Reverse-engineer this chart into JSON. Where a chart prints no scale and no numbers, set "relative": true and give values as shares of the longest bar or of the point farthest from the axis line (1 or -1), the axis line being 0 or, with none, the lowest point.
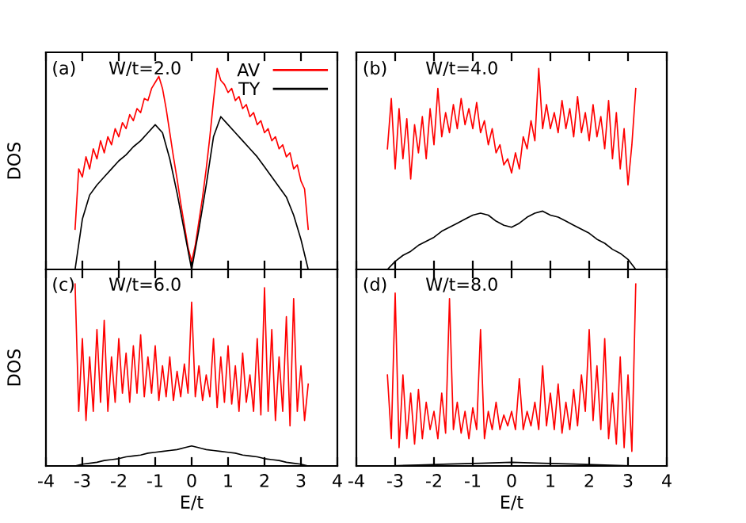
{
  "chart_data": [
    {
      "type": "line",
      "relative": true,
      "ylabel": "DOS",
      "annotations": [
        "(a)",
        "W/t=2.0"
      ],
      "xlim": [
        -4,
        4
      ],
      "xticks": [
        -4,
        -3,
        -2,
        -1,
        0,
        1,
        2,
        3,
        4
      ],
      "tick_labels": false,
      "legend": "top right",
      "x": [
        -3.2,
        -3.1,
        -3.0,
        -2.9,
        -2.8,
        -2.7,
        -2.6,
        -2.5,
        -2.4,
        -2.3,
        -2.2,
        -2.1,
        -2.0,
        -1.9,
        -1.8,
        -1.7,
        -1.6,
        -1.5,
        -1.4,
        -1.3,
        -1.2,
        -1.1,
        -1.0,
        -0.9,
        -0.8,
        -0.7,
        -0.6,
        -0.5,
        -0.4,
        -0.3,
        -0.2,
        -0.1,
        0.0,
        0.1,
        0.2,
        0.3,
        0.4,
        0.5,
        0.6,
        0.7,
        0.8,
        0.9,
        1.0,
        1.1,
        1.2,
        1.3,
        1.4,
        1.5,
        1.6,
        1.7,
        1.8,
        1.9,
        2.0,
        2.1,
        2.2,
        2.3,
        2.4,
        2.5,
        2.6,
        2.7,
        2.8,
        2.9,
        3.0,
        3.1,
        3.2
      ],
      "series": [
        {
          "name": "AV",
          "color": "#ff0000",
          "values": [
            0.2,
            0.5,
            0.46,
            0.56,
            0.5,
            0.6,
            0.55,
            0.64,
            0.58,
            0.66,
            0.62,
            0.7,
            0.66,
            0.73,
            0.7,
            0.77,
            0.74,
            0.8,
            0.78,
            0.85,
            0.84,
            0.9,
            0.93,
            0.96,
            0.9,
            0.8,
            0.68,
            0.56,
            0.45,
            0.33,
            0.22,
            0.11,
            0.04,
            0.12,
            0.24,
            0.36,
            0.5,
            0.66,
            0.84,
            1.0,
            0.94,
            0.92,
            0.88,
            0.9,
            0.84,
            0.86,
            0.8,
            0.82,
            0.76,
            0.78,
            0.72,
            0.74,
            0.68,
            0.7,
            0.64,
            0.66,
            0.6,
            0.62,
            0.56,
            0.58,
            0.5,
            0.52,
            0.44,
            0.4,
            0.2
          ]
        },
        {
          "name": "TY",
          "color": "#000000",
          "x": [
            -3.2,
            -3.0,
            -2.8,
            -2.6,
            -2.4,
            -2.2,
            -2.0,
            -1.8,
            -1.6,
            -1.4,
            -1.2,
            -1.0,
            -0.8,
            -0.6,
            -0.4,
            -0.2,
            0.0,
            0.2,
            0.4,
            0.6,
            0.8,
            1.0,
            1.2,
            1.4,
            1.6,
            1.8,
            2.0,
            2.2,
            2.4,
            2.6,
            2.8,
            3.0,
            3.2
          ],
          "values": [
            0,
            0.25,
            0.37,
            0.42,
            0.46,
            0.5,
            0.54,
            0.57,
            0.61,
            0.64,
            0.68,
            0.72,
            0.68,
            0.55,
            0.38,
            0.19,
            0,
            0.2,
            0.42,
            0.66,
            0.76,
            0.72,
            0.68,
            0.64,
            0.6,
            0.56,
            0.51,
            0.46,
            0.41,
            0.36,
            0.27,
            0.15,
            0
          ]
        }
      ]
    },
    {
      "type": "line",
      "relative": true,
      "annotations": [
        "(b)",
        "W/t=4.0"
      ],
      "xlim": [
        -4,
        4
      ],
      "xticks": [
        -4,
        -3,
        -2,
        -1,
        0,
        1,
        2,
        3,
        4
      ],
      "tick_labels": false,
      "x": [
        -3.2,
        -3.1,
        -3.0,
        -2.9,
        -2.8,
        -2.7,
        -2.6,
        -2.5,
        -2.4,
        -2.3,
        -2.2,
        -2.1,
        -2.0,
        -1.9,
        -1.8,
        -1.7,
        -1.6,
        -1.5,
        -1.4,
        -1.3,
        -1.2,
        -1.1,
        -1.0,
        -0.9,
        -0.8,
        -0.7,
        -0.6,
        -0.5,
        -0.4,
        -0.3,
        -0.2,
        -0.1,
        0.0,
        0.1,
        0.2,
        0.3,
        0.4,
        0.5,
        0.6,
        0.7,
        0.8,
        0.9,
        1.0,
        1.1,
        1.2,
        1.3,
        1.4,
        1.5,
        1.6,
        1.7,
        1.8,
        1.9,
        2.0,
        2.1,
        2.2,
        2.3,
        2.4,
        2.5,
        2.6,
        2.7,
        2.8,
        2.9,
        3.0,
        3.1,
        3.2
      ],
      "series": [
        {
          "color": "#ff0000",
          "values": [
            0.6,
            0.85,
            0.5,
            0.8,
            0.55,
            0.75,
            0.45,
            0.72,
            0.58,
            0.76,
            0.55,
            0.8,
            0.62,
            0.9,
            0.66,
            0.78,
            0.68,
            0.82,
            0.7,
            0.85,
            0.72,
            0.8,
            0.7,
            0.83,
            0.68,
            0.74,
            0.62,
            0.7,
            0.58,
            0.62,
            0.52,
            0.55,
            0.48,
            0.58,
            0.5,
            0.66,
            0.6,
            0.74,
            0.64,
            1.0,
            0.7,
            0.82,
            0.7,
            0.78,
            0.68,
            0.84,
            0.7,
            0.8,
            0.66,
            0.86,
            0.68,
            0.78,
            0.64,
            0.82,
            0.66,
            0.76,
            0.6,
            0.84,
            0.55,
            0.78,
            0.5,
            0.7,
            0.42,
            0.62,
            0.9
          ]
        },
        {
          "color": "#000000",
          "x": [
            -3.2,
            -3.0,
            -2.8,
            -2.6,
            -2.4,
            -2.2,
            -2.0,
            -1.8,
            -1.6,
            -1.4,
            -1.2,
            -1.0,
            -0.8,
            -0.6,
            -0.4,
            -0.2,
            0.0,
            0.2,
            0.4,
            0.6,
            0.8,
            1.0,
            1.2,
            1.4,
            1.6,
            1.8,
            2.0,
            2.2,
            2.4,
            2.6,
            2.8,
            3.0,
            3.2
          ],
          "values": [
            0,
            0.04,
            0.07,
            0.09,
            0.12,
            0.14,
            0.16,
            0.19,
            0.21,
            0.23,
            0.25,
            0.27,
            0.28,
            0.27,
            0.24,
            0.22,
            0.21,
            0.23,
            0.26,
            0.28,
            0.29,
            0.27,
            0.26,
            0.24,
            0.22,
            0.2,
            0.18,
            0.15,
            0.13,
            0.1,
            0.08,
            0.05,
            0
          ]
        }
      ]
    },
    {
      "type": "line",
      "relative": true,
      "ylabel": "DOS",
      "xlabel": "E/t",
      "annotations": [
        "(c)",
        "W/t=6.0"
      ],
      "xlim": [
        -4,
        4
      ],
      "xticks": [
        -4,
        -3,
        -2,
        -1,
        0,
        1,
        2,
        3,
        4
      ],
      "tick_labels": "x",
      "x": [
        -3.2,
        -3.1,
        -3.0,
        -2.9,
        -2.8,
        -2.7,
        -2.6,
        -2.5,
        -2.4,
        -2.3,
        -2.2,
        -2.1,
        -2.0,
        -1.9,
        -1.8,
        -1.7,
        -1.6,
        -1.5,
        -1.4,
        -1.3,
        -1.2,
        -1.1,
        -1.0,
        -0.9,
        -0.8,
        -0.7,
        -0.6,
        -0.5,
        -0.4,
        -0.3,
        -0.2,
        -0.1,
        0.0,
        0.1,
        0.2,
        0.3,
        0.4,
        0.5,
        0.6,
        0.7,
        0.8,
        0.9,
        1.0,
        1.1,
        1.2,
        1.3,
        1.4,
        1.5,
        1.6,
        1.7,
        1.8,
        1.9,
        2.0,
        2.1,
        2.2,
        2.3,
        2.4,
        2.5,
        2.6,
        2.7,
        2.8,
        2.9,
        3.0,
        3.1,
        3.2
      ],
      "series": [
        {
          "color": "#ff0000",
          "values": [
            1.0,
            0.3,
            0.7,
            0.25,
            0.6,
            0.3,
            0.75,
            0.35,
            0.8,
            0.3,
            0.6,
            0.35,
            0.7,
            0.4,
            0.62,
            0.35,
            0.66,
            0.4,
            0.72,
            0.38,
            0.6,
            0.4,
            0.66,
            0.36,
            0.55,
            0.38,
            0.6,
            0.36,
            0.52,
            0.38,
            0.56,
            0.4,
            0.9,
            0.38,
            0.55,
            0.36,
            0.5,
            0.38,
            0.7,
            0.32,
            0.6,
            0.35,
            0.66,
            0.34,
            0.55,
            0.3,
            0.62,
            0.35,
            0.5,
            0.3,
            0.7,
            0.28,
            0.98,
            0.3,
            0.75,
            0.25,
            0.6,
            0.3,
            0.82,
            0.22,
            0.92,
            0.3,
            0.55,
            0.25,
            0.45
          ]
        },
        {
          "color": "#000000",
          "x": [
            -3.2,
            -3.0,
            -2.8,
            -2.6,
            -2.4,
            -2.2,
            -2.0,
            -1.8,
            -1.6,
            -1.4,
            -1.2,
            -1.0,
            -0.8,
            -0.6,
            -0.4,
            -0.2,
            0.0,
            0.2,
            0.4,
            0.6,
            0.8,
            1.0,
            1.2,
            1.4,
            1.6,
            1.8,
            2.0,
            2.2,
            2.4,
            2.6,
            2.8,
            3.0,
            3.2
          ],
          "values": [
            0,
            0.01,
            0.015,
            0.02,
            0.03,
            0.035,
            0.04,
            0.05,
            0.055,
            0.06,
            0.07,
            0.075,
            0.08,
            0.085,
            0.09,
            0.1,
            0.11,
            0.1,
            0.09,
            0.085,
            0.08,
            0.075,
            0.07,
            0.06,
            0.055,
            0.05,
            0.04,
            0.035,
            0.03,
            0.02,
            0.015,
            0.01,
            0
          ]
        }
      ]
    },
    {
      "type": "line",
      "relative": true,
      "xlabel": "E/t",
      "annotations": [
        "(d)",
        "W/t=8.0"
      ],
      "xlim": [
        -4,
        4
      ],
      "xticks": [
        -4,
        -3,
        -2,
        -1,
        0,
        1,
        2,
        3,
        4
      ],
      "tick_labels": "x",
      "x": [
        -3.2,
        -3.1,
        -3.0,
        -2.9,
        -2.8,
        -2.7,
        -2.6,
        -2.5,
        -2.4,
        -2.3,
        -2.2,
        -2.1,
        -2.0,
        -1.9,
        -1.8,
        -1.7,
        -1.6,
        -1.5,
        -1.4,
        -1.3,
        -1.2,
        -1.1,
        -1.0,
        -0.9,
        -0.8,
        -0.7,
        -0.6,
        -0.5,
        -0.4,
        -0.3,
        -0.2,
        -0.1,
        0.0,
        0.1,
        0.2,
        0.3,
        0.4,
        0.5,
        0.6,
        0.7,
        0.8,
        0.9,
        1.0,
        1.1,
        1.2,
        1.3,
        1.4,
        1.5,
        1.6,
        1.7,
        1.8,
        1.9,
        2.0,
        2.1,
        2.2,
        2.3,
        2.4,
        2.5,
        2.6,
        2.7,
        2.8,
        2.9,
        3.0,
        3.1,
        3.2
      ],
      "series": [
        {
          "color": "#ff0000",
          "values": [
            0.5,
            0.15,
            0.95,
            0.1,
            0.5,
            0.15,
            0.4,
            0.12,
            0.42,
            0.15,
            0.35,
            0.2,
            0.3,
            0.15,
            0.4,
            0.18,
            0.92,
            0.2,
            0.35,
            0.18,
            0.3,
            0.15,
            0.32,
            0.2,
            0.75,
            0.15,
            0.3,
            0.2,
            0.35,
            0.2,
            0.28,
            0.22,
            0.3,
            0.2,
            0.48,
            0.2,
            0.3,
            0.22,
            0.35,
            0.2,
            0.55,
            0.22,
            0.4,
            0.2,
            0.45,
            0.18,
            0.35,
            0.2,
            0.42,
            0.22,
            0.5,
            0.3,
            0.75,
            0.25,
            0.55,
            0.2,
            0.7,
            0.15,
            0.4,
            0.12,
            0.6,
            0.1,
            0.5,
            0.08,
            1.0
          ]
        },
        {
          "color": "#000000",
          "x": [
            -3.2,
            -2.4,
            -1.6,
            -0.8,
            0.0,
            0.8,
            1.6,
            2.4,
            3.2
          ],
          "values": [
            0,
            0.005,
            0.01,
            0.015,
            0.02,
            0.015,
            0.01,
            0.005,
            0
          ]
        }
      ]
    }
  ]
}
